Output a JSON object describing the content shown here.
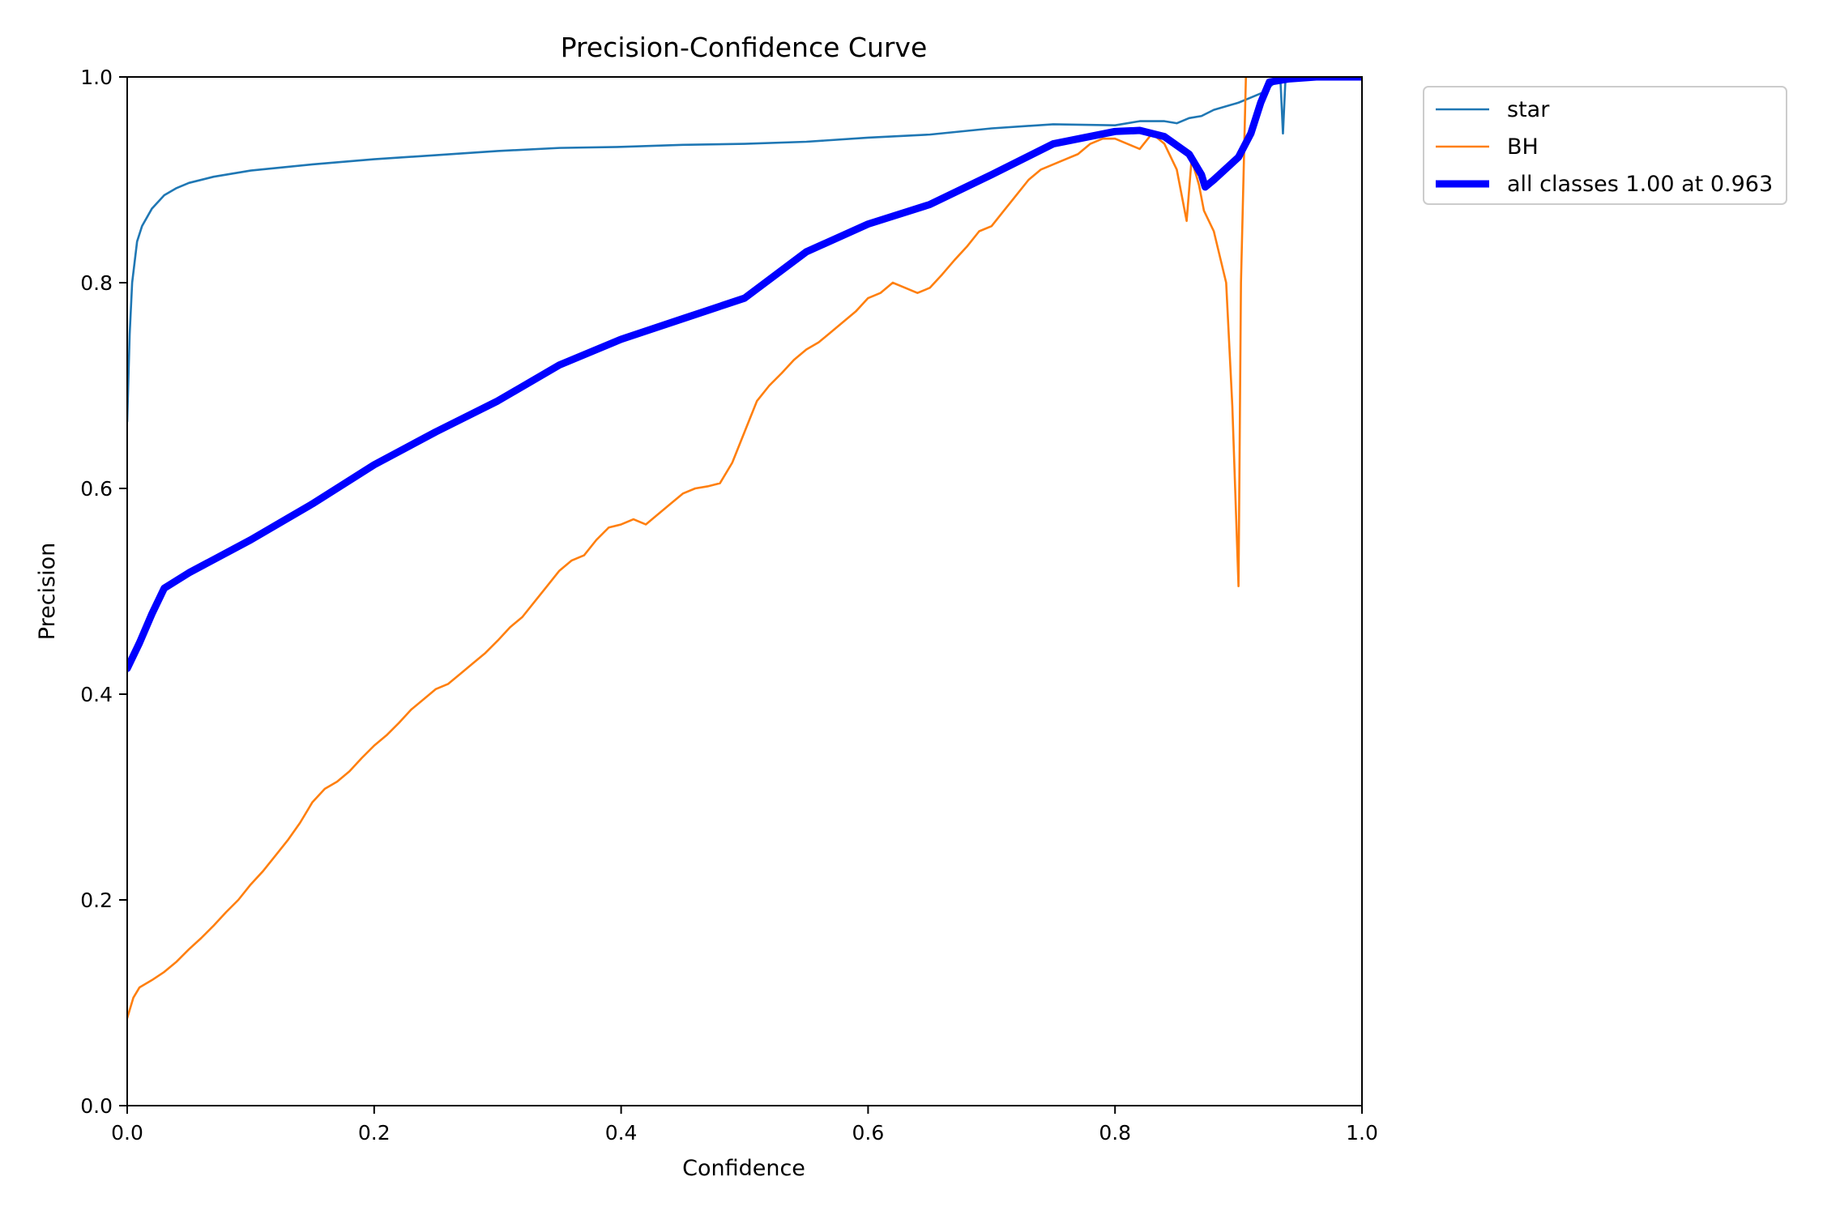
{
  "chart_data": {
    "type": "line",
    "title": "Precision-Confidence Curve",
    "xlabel": "Confidence",
    "ylabel": "Precision",
    "xlim": [
      0.0,
      1.0
    ],
    "ylim": [
      0.0,
      1.0
    ],
    "xticks": [
      "0.0",
      "0.2",
      "0.4",
      "0.6",
      "0.8",
      "1.0"
    ],
    "yticks": [
      "0.0",
      "0.2",
      "0.4",
      "0.6",
      "0.8",
      "1.0"
    ],
    "grid": false,
    "legend_position": "outside-top-right",
    "series": [
      {
        "name": "star",
        "color": "#1f77b4",
        "width": "thin",
        "points": [
          [
            0.0,
            0.665
          ],
          [
            0.002,
            0.75
          ],
          [
            0.004,
            0.8
          ],
          [
            0.008,
            0.84
          ],
          [
            0.012,
            0.855
          ],
          [
            0.02,
            0.872
          ],
          [
            0.03,
            0.885
          ],
          [
            0.04,
            0.892
          ],
          [
            0.05,
            0.897
          ],
          [
            0.07,
            0.903
          ],
          [
            0.1,
            0.909
          ],
          [
            0.15,
            0.915
          ],
          [
            0.2,
            0.92
          ],
          [
            0.25,
            0.924
          ],
          [
            0.3,
            0.928
          ],
          [
            0.35,
            0.931
          ],
          [
            0.4,
            0.932
          ],
          [
            0.45,
            0.934
          ],
          [
            0.5,
            0.935
          ],
          [
            0.55,
            0.937
          ],
          [
            0.6,
            0.941
          ],
          [
            0.65,
            0.944
          ],
          [
            0.7,
            0.95
          ],
          [
            0.75,
            0.954
          ],
          [
            0.8,
            0.953
          ],
          [
            0.82,
            0.957
          ],
          [
            0.84,
            0.957
          ],
          [
            0.85,
            0.955
          ],
          [
            0.86,
            0.96
          ],
          [
            0.87,
            0.962
          ],
          [
            0.88,
            0.968
          ],
          [
            0.9,
            0.975
          ],
          [
            0.91,
            0.98
          ],
          [
            0.92,
            0.985
          ],
          [
            0.925,
            0.99
          ],
          [
            0.93,
            0.995
          ],
          [
            0.934,
            0.996
          ],
          [
            0.936,
            0.945
          ],
          [
            0.938,
            0.997
          ],
          [
            0.95,
            0.998
          ],
          [
            0.96,
            0.999
          ],
          [
            1.0,
            1.0
          ]
        ]
      },
      {
        "name": "BH",
        "color": "#ff7f0e",
        "width": "thin",
        "points": [
          [
            0.0,
            0.085
          ],
          [
            0.005,
            0.105
          ],
          [
            0.01,
            0.115
          ],
          [
            0.02,
            0.122
          ],
          [
            0.03,
            0.13
          ],
          [
            0.04,
            0.14
          ],
          [
            0.05,
            0.152
          ],
          [
            0.06,
            0.163
          ],
          [
            0.07,
            0.175
          ],
          [
            0.08,
            0.188
          ],
          [
            0.09,
            0.2
          ],
          [
            0.1,
            0.215
          ],
          [
            0.11,
            0.228
          ],
          [
            0.12,
            0.243
          ],
          [
            0.13,
            0.258
          ],
          [
            0.14,
            0.275
          ],
          [
            0.15,
            0.295
          ],
          [
            0.16,
            0.308
          ],
          [
            0.17,
            0.315
          ],
          [
            0.18,
            0.325
          ],
          [
            0.19,
            0.338
          ],
          [
            0.2,
            0.35
          ],
          [
            0.21,
            0.36
          ],
          [
            0.22,
            0.372
          ],
          [
            0.23,
            0.385
          ],
          [
            0.24,
            0.395
          ],
          [
            0.25,
            0.405
          ],
          [
            0.26,
            0.41
          ],
          [
            0.27,
            0.42
          ],
          [
            0.28,
            0.43
          ],
          [
            0.29,
            0.44
          ],
          [
            0.3,
            0.452
          ],
          [
            0.31,
            0.465
          ],
          [
            0.32,
            0.475
          ],
          [
            0.33,
            0.49
          ],
          [
            0.34,
            0.505
          ],
          [
            0.35,
            0.52
          ],
          [
            0.36,
            0.53
          ],
          [
            0.37,
            0.535
          ],
          [
            0.38,
            0.55
          ],
          [
            0.39,
            0.562
          ],
          [
            0.4,
            0.565
          ],
          [
            0.41,
            0.57
          ],
          [
            0.42,
            0.565
          ],
          [
            0.43,
            0.575
          ],
          [
            0.44,
            0.585
          ],
          [
            0.45,
            0.595
          ],
          [
            0.46,
            0.6
          ],
          [
            0.47,
            0.602
          ],
          [
            0.48,
            0.605
          ],
          [
            0.49,
            0.625
          ],
          [
            0.5,
            0.655
          ],
          [
            0.51,
            0.685
          ],
          [
            0.52,
            0.7
          ],
          [
            0.53,
            0.712
          ],
          [
            0.54,
            0.725
          ],
          [
            0.55,
            0.735
          ],
          [
            0.56,
            0.742
          ],
          [
            0.57,
            0.752
          ],
          [
            0.58,
            0.762
          ],
          [
            0.59,
            0.772
          ],
          [
            0.6,
            0.785
          ],
          [
            0.61,
            0.79
          ],
          [
            0.62,
            0.8
          ],
          [
            0.63,
            0.795
          ],
          [
            0.64,
            0.79
          ],
          [
            0.65,
            0.795
          ],
          [
            0.66,
            0.808
          ],
          [
            0.67,
            0.822
          ],
          [
            0.68,
            0.835
          ],
          [
            0.69,
            0.85
          ],
          [
            0.7,
            0.855
          ],
          [
            0.71,
            0.87
          ],
          [
            0.72,
            0.885
          ],
          [
            0.73,
            0.9
          ],
          [
            0.74,
            0.91
          ],
          [
            0.75,
            0.915
          ],
          [
            0.76,
            0.92
          ],
          [
            0.77,
            0.925
          ],
          [
            0.78,
            0.935
          ],
          [
            0.79,
            0.94
          ],
          [
            0.8,
            0.94
          ],
          [
            0.81,
            0.935
          ],
          [
            0.82,
            0.93
          ],
          [
            0.83,
            0.945
          ],
          [
            0.84,
            0.935
          ],
          [
            0.85,
            0.91
          ],
          [
            0.858,
            0.86
          ],
          [
            0.862,
            0.92
          ],
          [
            0.868,
            0.895
          ],
          [
            0.872,
            0.87
          ],
          [
            0.88,
            0.85
          ],
          [
            0.89,
            0.8
          ],
          [
            0.895,
            0.68
          ],
          [
            0.9,
            0.505
          ],
          [
            0.902,
            0.8
          ],
          [
            0.906,
            1.0
          ]
        ]
      },
      {
        "name": "all classes 1.00 at 0.963",
        "color": "#0000ff",
        "width": "thick",
        "points": [
          [
            0.0,
            0.425
          ],
          [
            0.01,
            0.45
          ],
          [
            0.02,
            0.478
          ],
          [
            0.03,
            0.503
          ],
          [
            0.05,
            0.518
          ],
          [
            0.1,
            0.55
          ],
          [
            0.15,
            0.585
          ],
          [
            0.2,
            0.623
          ],
          [
            0.25,
            0.655
          ],
          [
            0.3,
            0.685
          ],
          [
            0.35,
            0.72
          ],
          [
            0.4,
            0.745
          ],
          [
            0.45,
            0.765
          ],
          [
            0.5,
            0.785
          ],
          [
            0.55,
            0.83
          ],
          [
            0.6,
            0.857
          ],
          [
            0.65,
            0.876
          ],
          [
            0.7,
            0.905
          ],
          [
            0.75,
            0.935
          ],
          [
            0.8,
            0.947
          ],
          [
            0.82,
            0.948
          ],
          [
            0.84,
            0.942
          ],
          [
            0.86,
            0.925
          ],
          [
            0.87,
            0.905
          ],
          [
            0.873,
            0.893
          ],
          [
            0.88,
            0.9
          ],
          [
            0.9,
            0.922
          ],
          [
            0.91,
            0.945
          ],
          [
            0.918,
            0.975
          ],
          [
            0.925,
            0.995
          ],
          [
            0.94,
            0.998
          ],
          [
            0.963,
            1.0
          ],
          [
            1.0,
            1.0
          ]
        ]
      }
    ]
  }
}
